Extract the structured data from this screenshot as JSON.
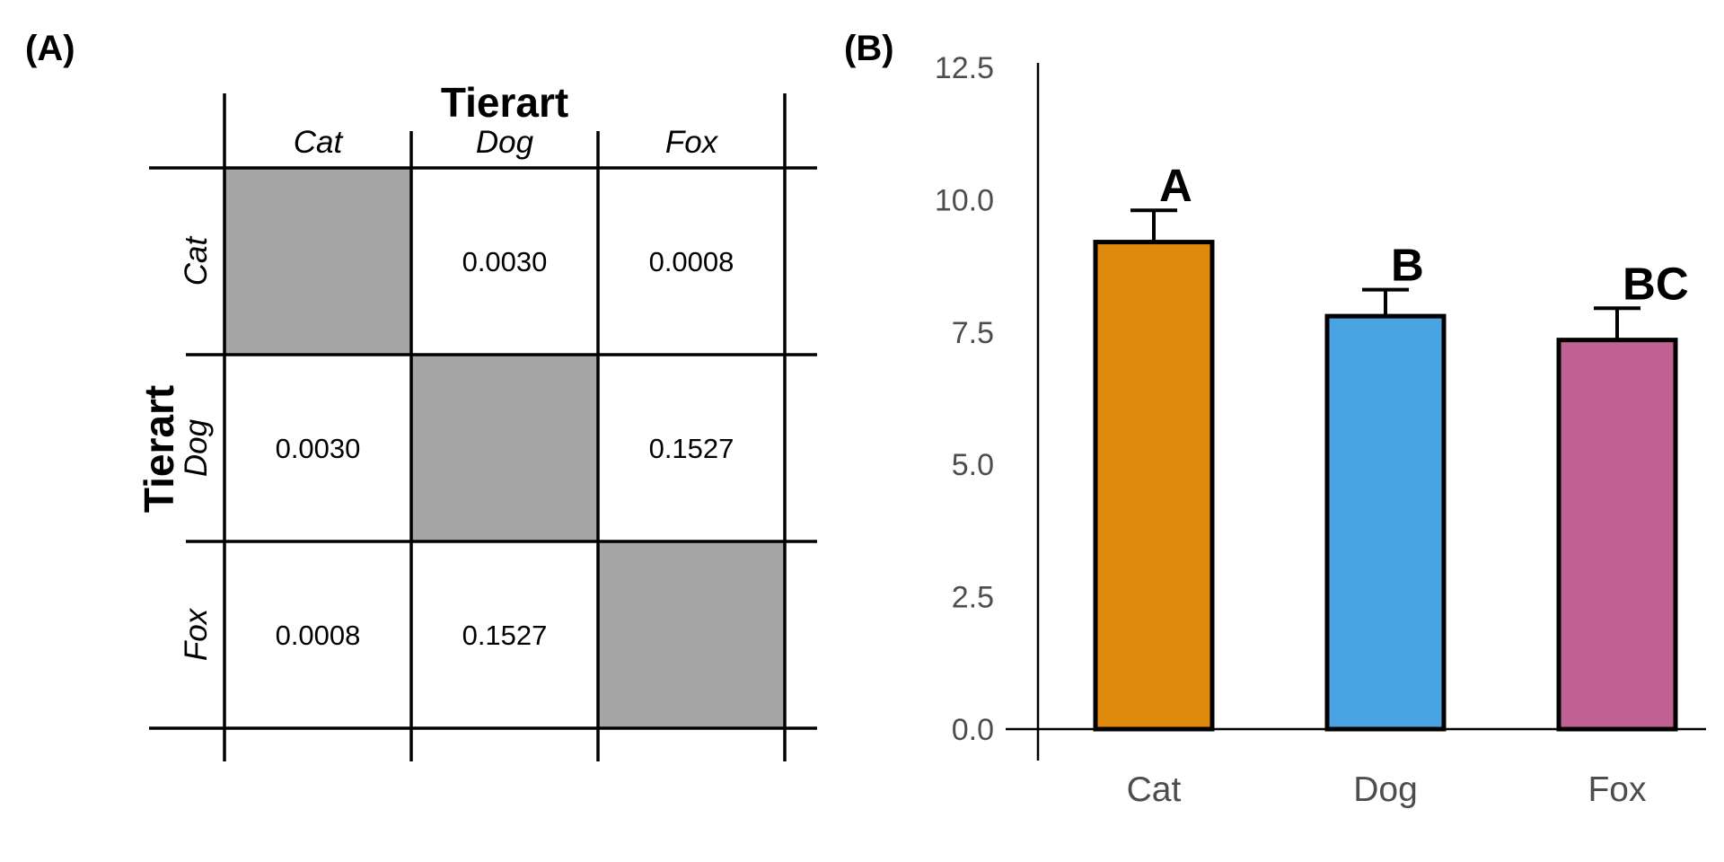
{
  "panel_a": {
    "label": "(A)",
    "col_title": "Tierart",
    "row_title": "Tierart",
    "columns": [
      "Cat",
      "Dog",
      "Fox"
    ],
    "rows": [
      "Cat",
      "Dog",
      "Fox"
    ],
    "cells": [
      [
        "",
        "0.0030",
        "0.0008"
      ],
      [
        "0.0030",
        "",
        "0.1527"
      ],
      [
        "0.0008",
        "0.1527",
        ""
      ]
    ],
    "diagonal_color": "#a6a6a6"
  },
  "chart_data": {
    "label": "(B)",
    "type": "bar",
    "categories": [
      "Cat",
      "Dog",
      "Fox"
    ],
    "values": [
      9.2,
      7.8,
      7.35
    ],
    "error_upper": [
      9.8,
      8.3,
      7.95
    ],
    "significance_letters": [
      "A",
      "B",
      "BC"
    ],
    "colors": [
      "#df8a0c",
      "#4aa3e2",
      "#c06394"
    ],
    "ylim": [
      0,
      12.5
    ],
    "yticks": [
      "0.0",
      "2.5",
      "5.0",
      "7.5",
      "10.0",
      "12.5"
    ],
    "xlabel": "",
    "ylabel": ""
  }
}
